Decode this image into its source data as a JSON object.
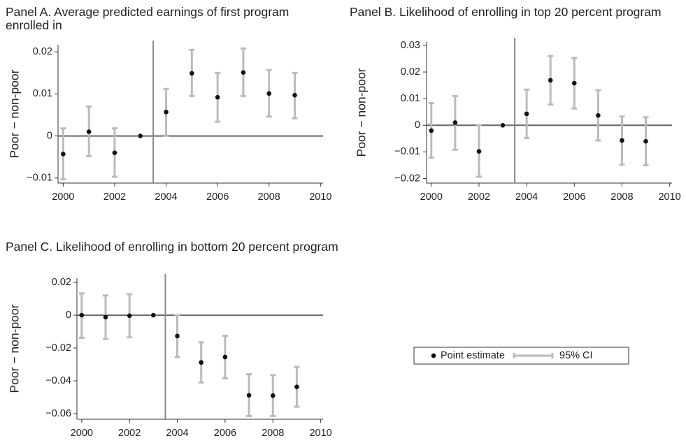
{
  "chart_data": [
    {
      "type": "errorbar",
      "title": "Panel A. Average predicted earnings of first program enrolled in",
      "ylabel": "Poor − non-poor",
      "x": [
        2000,
        2001,
        2002,
        2003,
        2004,
        2005,
        2006,
        2007,
        2008,
        2009
      ],
      "values": [
        -0.0043,
        0.001,
        -0.004,
        0,
        0.0057,
        0.0149,
        0.0092,
        0.0151,
        0.0101,
        0.0097
      ],
      "lower": [
        -0.0103,
        -0.0048,
        -0.0097,
        0,
        0.0001,
        0.0095,
        0.0034,
        0.0095,
        0.0046,
        0.0042
      ],
      "upper": [
        0.0018,
        0.007,
        0.0018,
        0,
        0.0112,
        0.0205,
        0.015,
        0.0208,
        0.0157,
        0.015
      ],
      "color": "#111111",
      "ci_color": "#bbbbbb",
      "xlim": [
        1999.8,
        2010.1
      ],
      "xticks": [
        2000,
        2002,
        2004,
        2006,
        2008,
        2010
      ],
      "ylim": [
        -0.0112,
        0.0217
      ],
      "yticks": [
        {
          "value": -0.01,
          "label": "−0.01"
        },
        0,
        0.01,
        0.02
      ],
      "hline": 0,
      "vline": 2003.5
    },
    {
      "type": "errorbar",
      "title": "Panel B. Likelihood of enrolling in top 20 percent program",
      "ylabel": "Poor − non-poor",
      "x": [
        2000,
        2001,
        2002,
        2003,
        2004,
        2005,
        2006,
        2007,
        2008,
        2009
      ],
      "values": [
        -0.002,
        0.001,
        -0.0098,
        0,
        0.0043,
        0.0169,
        0.0158,
        0.0037,
        -0.0057,
        -0.006
      ],
      "lower": [
        -0.0122,
        -0.0092,
        -0.0193,
        0,
        -0.0048,
        0.0078,
        0.0063,
        -0.0057,
        -0.0148,
        -0.015
      ],
      "upper": [
        0.0083,
        0.011,
        0,
        0,
        0.0134,
        0.026,
        0.0253,
        0.0132,
        0.0033,
        0.003
      ],
      "color": "#111111",
      "ci_color": "#bbbbbb",
      "xlim": [
        1999.8,
        2010.1
      ],
      "xticks": [
        2000,
        2002,
        2004,
        2006,
        2008,
        2010
      ],
      "ylim": [
        -0.0217,
        0.0313
      ],
      "yticks": [
        {
          "value": -0.02,
          "label": "−0.02"
        },
        {
          "value": -0.01,
          "label": "−0.01"
        },
        0,
        0.01,
        0.02,
        0.03
      ],
      "hline": 0,
      "vline": 2003.5
    },
    {
      "type": "errorbar",
      "title": "Panel C. Likelihood of enrolling in bottom 20 percent program",
      "ylabel": "Poor − non-poor",
      "x": [
        2000,
        2001,
        2002,
        2003,
        2004,
        2005,
        2006,
        2007,
        2008,
        2009
      ],
      "values": [
        0,
        -0.0012,
        -0.0003,
        0,
        -0.0127,
        -0.0288,
        -0.0255,
        -0.0488,
        -0.049,
        -0.0437
      ],
      "lower": [
        -0.0138,
        -0.0145,
        -0.0135,
        0,
        -0.0255,
        -0.041,
        -0.0385,
        -0.0615,
        -0.0615,
        -0.0558
      ],
      "upper": [
        0.0133,
        0.012,
        0.0128,
        0,
        0,
        -0.0165,
        -0.0125,
        -0.036,
        -0.0365,
        -0.0315
      ],
      "color": "#111111",
      "ci_color": "#bbbbbb",
      "xlim": [
        1999.8,
        2010.1
      ],
      "xticks": [
        2000,
        2002,
        2004,
        2006,
        2008,
        2010
      ],
      "ylim": [
        -0.0634,
        0.0226
      ],
      "yticks": [
        {
          "value": -0.06,
          "label": "−0.06"
        },
        {
          "value": -0.04,
          "label": "−0.04"
        },
        {
          "value": -0.02,
          "label": "−0.02"
        },
        0,
        0.02
      ],
      "hline": 0,
      "vline": 2003.5
    }
  ],
  "legend": {
    "entries": [
      {
        "name": "Point estimate",
        "color": "#111111"
      },
      {
        "name": "95% CI",
        "color": "#bbbbbb"
      }
    ]
  }
}
